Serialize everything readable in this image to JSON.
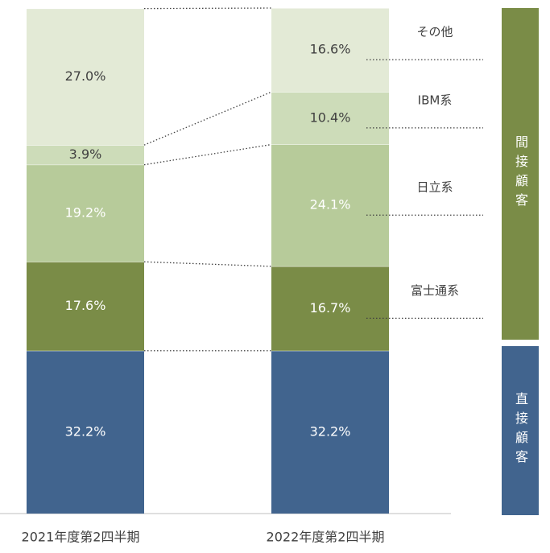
{
  "chart_data": {
    "type": "stacked_bar",
    "categories": [
      "2021年度第2四半期",
      "2022年度第2四半期"
    ],
    "ylim": [
      0,
      100
    ],
    "indirect_label": "間接顧客",
    "series": [
      {
        "name": "直接顧客",
        "color": "#41648e",
        "label_color": "#ffffff",
        "values": [
          32.2,
          32.2
        ],
        "value_labels": [
          "32.2%",
          "32.2%"
        ]
      },
      {
        "name": "富士通系",
        "color": "#7a8c47",
        "label_color": "#ffffff",
        "values": [
          17.6,
          16.7
        ],
        "value_labels": [
          "17.6%",
          "16.7%"
        ]
      },
      {
        "name": "日立系",
        "color": "#b7cb9a",
        "label_color": "#ffffff",
        "values": [
          19.2,
          24.1
        ],
        "value_labels": [
          "19.2%",
          "24.1%"
        ]
      },
      {
        "name": "IBM系",
        "color": "#cddcb9",
        "label_color": "#404040",
        "values": [
          3.9,
          10.4
        ],
        "value_labels": [
          "3.9%",
          "10.4%"
        ]
      },
      {
        "name": "その他",
        "color": "#e3ead6",
        "label_color": "#404040",
        "values": [
          27.0,
          16.6
        ],
        "value_labels": [
          "27.0%",
          "16.6%"
        ]
      }
    ]
  }
}
